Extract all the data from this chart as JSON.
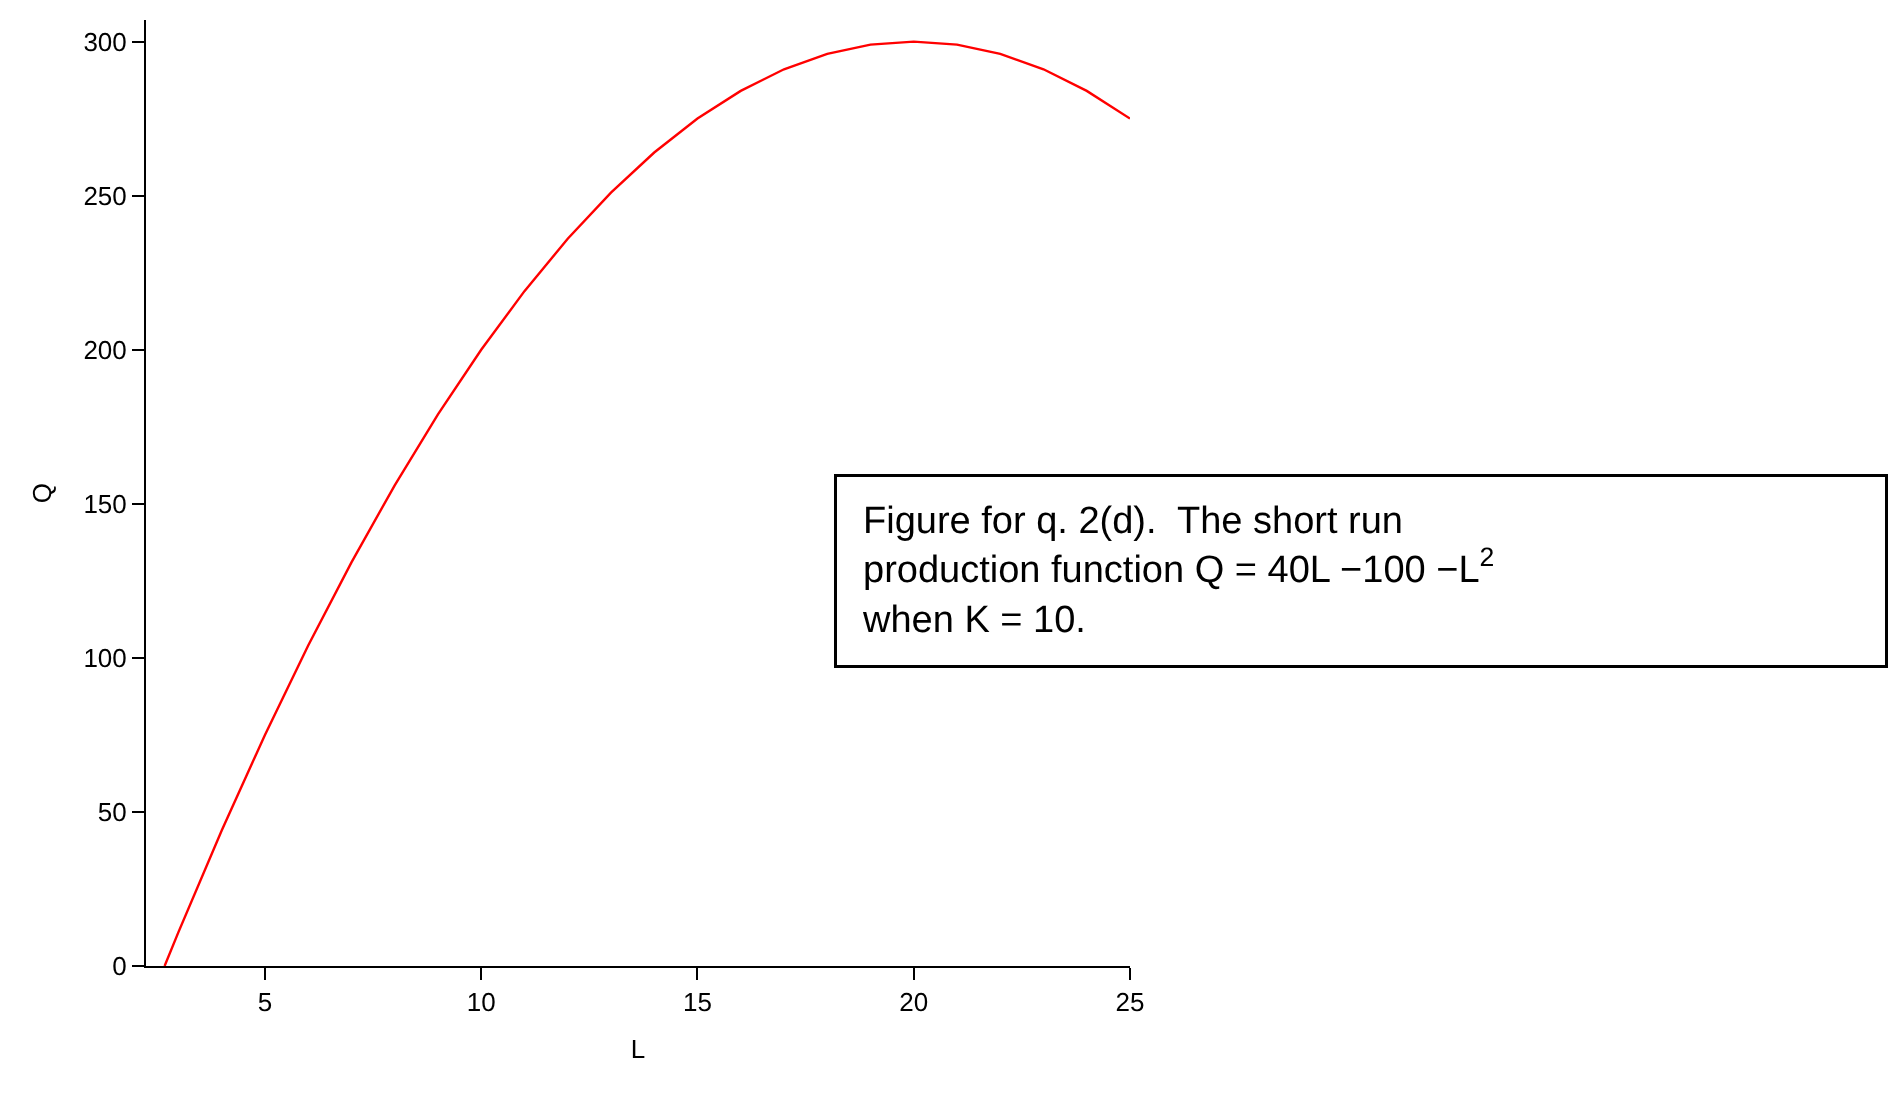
{
  "chart_data": {
    "type": "line",
    "xlabel": "L",
    "ylabel": "Q",
    "x": [
      2.68,
      3,
      4,
      5,
      6,
      7,
      8,
      9,
      10,
      11,
      12,
      13,
      14,
      15,
      16,
      17,
      18,
      19,
      20,
      21,
      22,
      23,
      24,
      25
    ],
    "series": [
      {
        "color": "#ff0000",
        "values": [
          0,
          11,
          44,
          75,
          104,
          131,
          156,
          179,
          200,
          219,
          236,
          251,
          264,
          275,
          284,
          291,
          296,
          299,
          300,
          299,
          296,
          291,
          284,
          275
        ]
      }
    ],
    "xlim": [
      2.25,
      25
    ],
    "xticks": [
      5,
      10,
      15,
      20,
      25
    ],
    "ylim": [
      0,
      307
    ],
    "yticks": [
      0,
      50,
      100,
      150,
      200,
      250,
      300
    ],
    "grid": false,
    "marker": "none",
    "line_style": "solid",
    "annotations": [
      "Figure for q. 2(d).  The short run\nproduction function Q = 40L −100 −L$^{2}$\nwhen K = 10."
    ]
  }
}
